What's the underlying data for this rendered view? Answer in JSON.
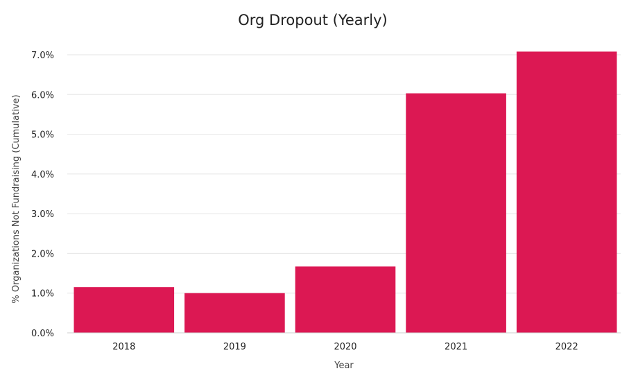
{
  "chart_data": {
    "type": "bar",
    "title": "Org Dropout (Yearly)",
    "xlabel": "Year",
    "ylabel": "% Organizations Not Fundraising (Cumulative)",
    "categories": [
      "2018",
      "2019",
      "2020",
      "2021",
      "2022"
    ],
    "values": [
      1.15,
      1.0,
      1.67,
      6.03,
      7.08
    ],
    "y_unit": "%",
    "ylim": [
      0,
      7.0
    ],
    "yticks": [
      0.0,
      1.0,
      2.0,
      3.0,
      4.0,
      5.0,
      6.0,
      7.0
    ],
    "ytick_labels": [
      "0.0%",
      "1.0%",
      "2.0%",
      "3.0%",
      "4.0%",
      "5.0%",
      "6.0%",
      "7.0%"
    ],
    "grid": true,
    "legend": "none",
    "bar_color": "#DC1853",
    "grid_color": "#E6E6E6"
  }
}
